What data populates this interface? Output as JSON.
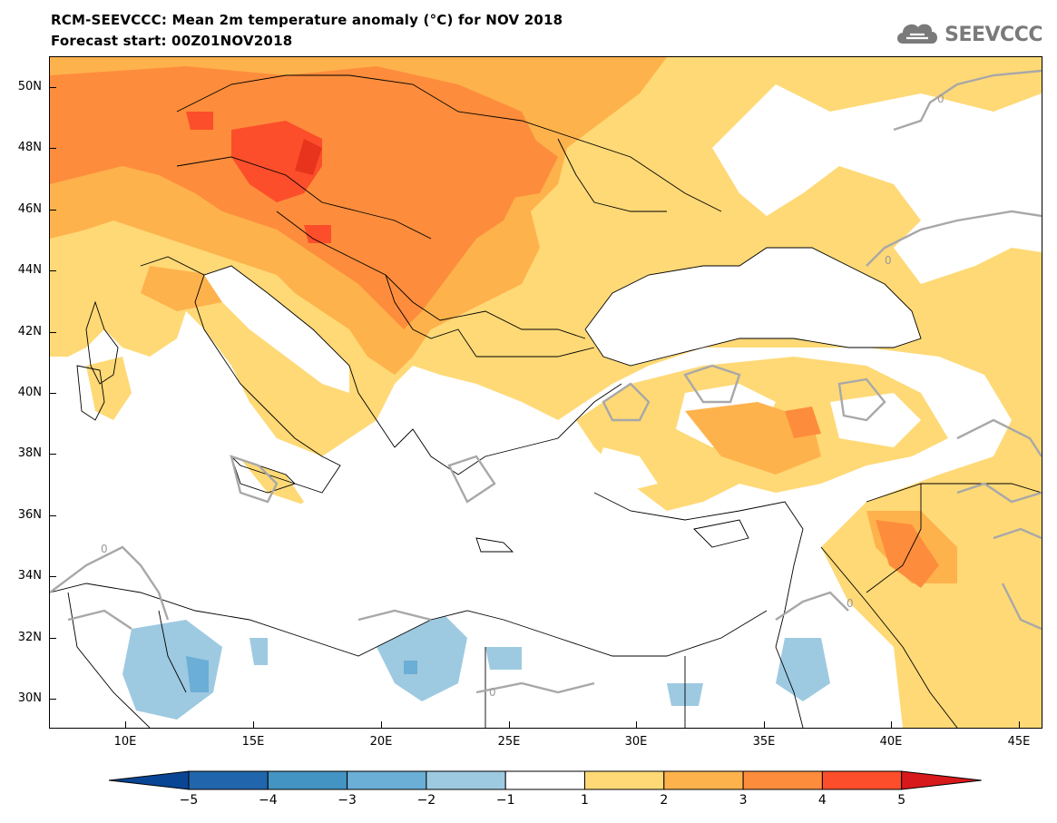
{
  "header": {
    "title": "RCM-SEEVCCC: Mean 2m temperature anomaly (°C) for NOV 2018",
    "subtitle": "Forecast start: 00Z01NOV2018"
  },
  "logo": {
    "text": "SEEVCCC",
    "icon": "cloud-icon"
  },
  "map": {
    "type": "filled-contour-map",
    "variable": "Mean 2m temperature anomaly (°C)",
    "lon_range": [
      7,
      46
    ],
    "lat_range": [
      29,
      51
    ],
    "contour_label": "0",
    "lat_ticks": [
      "50N",
      "48N",
      "46N",
      "44N",
      "42N",
      "40N",
      "38N",
      "36N",
      "34N",
      "32N",
      "30N"
    ],
    "lon_ticks": [
      "10E",
      "15E",
      "20E",
      "25E",
      "30E",
      "35E",
      "40E",
      "45E"
    ]
  },
  "colorbar": {
    "labels": [
      "-5",
      "-4",
      "-3",
      "-2",
      "-1",
      "1",
      "2",
      "3",
      "4",
      "5"
    ],
    "colors": [
      "#084594",
      "#2166ac",
      "#4393c3",
      "#6baed6",
      "#9ecae1",
      "#ffffff",
      "#fed976",
      "#feb24c",
      "#fd8d3c",
      "#fc4e2a",
      "#d7191c"
    ]
  }
}
